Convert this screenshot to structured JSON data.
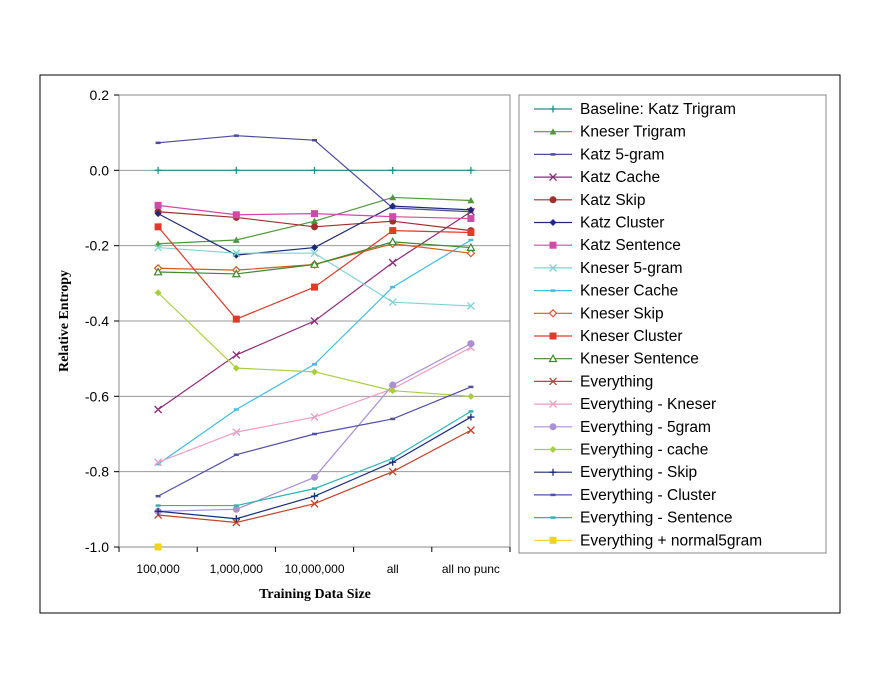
{
  "chart_data": {
    "type": "line",
    "title": "",
    "xlabel": "Training Data Size",
    "ylabel": "Relative Entropy",
    "categories": [
      "100,000",
      "1,000,000",
      "10,000,000",
      "all",
      "all no punc"
    ],
    "ylim": [
      -1.0,
      0.2
    ],
    "yticks": [
      -1.0,
      -0.8,
      -0.6,
      -0.4,
      -0.2,
      0.0,
      0.2
    ],
    "ytick_labels": [
      "-1.0",
      "-0.8",
      "-0.6",
      "-0.4",
      "-0.2",
      "0.0",
      "0.2"
    ],
    "grid": "horizontal",
    "legend_position": "right",
    "series": [
      {
        "name": "Baseline: Katz Trigram",
        "color": "#1f8f8f",
        "marker": "plus",
        "values": [
          0.0,
          0.0,
          0.0,
          0.0,
          0.0
        ]
      },
      {
        "name": "Kneser Trigram",
        "color": "#4e9a3a",
        "marker": "triangle",
        "values": [
          -0.195,
          -0.185,
          -0.135,
          -0.072,
          -0.08
        ]
      },
      {
        "name": "Katz 5-gram",
        "color": "#4b4ba0",
        "marker": "dash",
        "values": [
          0.073,
          0.092,
          0.08,
          -0.1,
          -0.11
        ]
      },
      {
        "name": "Katz Cache",
        "color": "#8e2a7a",
        "marker": "x",
        "values": [
          -0.635,
          -0.49,
          -0.4,
          -0.245,
          -0.11
        ]
      },
      {
        "name": "Katz Skip",
        "color": "#a02e2e",
        "marker": "circle",
        "values": [
          -0.11,
          -0.125,
          -0.15,
          -0.135,
          -0.16
        ]
      },
      {
        "name": "Katz Cluster",
        "color": "#1e2a78",
        "marker": "diamond",
        "values": [
          -0.115,
          -0.225,
          -0.205,
          -0.095,
          -0.105
        ]
      },
      {
        "name": "Katz Sentence",
        "color": "#d04aa6",
        "marker": "square",
        "values": [
          -0.093,
          -0.118,
          -0.115,
          -0.123,
          -0.128
        ]
      },
      {
        "name": "Kneser 5-gram",
        "color": "#7fd4d4",
        "marker": "x",
        "values": [
          -0.205,
          -0.22,
          -0.22,
          -0.35,
          -0.36
        ]
      },
      {
        "name": "Kneser Cache",
        "color": "#3fbde8",
        "marker": "dash",
        "values": [
          -0.78,
          -0.635,
          -0.515,
          -0.31,
          -0.185
        ]
      },
      {
        "name": "Kneser Skip",
        "color": "#d45a1e",
        "marker": "diamond-open",
        "values": [
          -0.26,
          -0.265,
          -0.25,
          -0.195,
          -0.22
        ]
      },
      {
        "name": "Kneser Cluster",
        "color": "#e03a2a",
        "marker": "square",
        "values": [
          -0.15,
          -0.395,
          -0.31,
          -0.16,
          -0.165
        ]
      },
      {
        "name": "Kneser Sentence",
        "color": "#3e8a2e",
        "marker": "triangle-open",
        "values": [
          -0.27,
          -0.275,
          -0.25,
          -0.19,
          -0.205
        ]
      },
      {
        "name": "Everything",
        "color": "#c0442a",
        "marker": "x",
        "values": [
          -0.915,
          -0.935,
          -0.885,
          -0.8,
          -0.69
        ]
      },
      {
        "name": "Everything - Kneser",
        "color": "#f29ac2",
        "marker": "x",
        "values": [
          -0.775,
          -0.695,
          -0.655,
          -0.58,
          -0.47
        ]
      },
      {
        "name": "Everything - 5gram",
        "color": "#a98fd6",
        "marker": "circle",
        "values": [
          -0.905,
          -0.9,
          -0.815,
          -0.57,
          -0.46
        ]
      },
      {
        "name": "Everything - cache",
        "color": "#a8cf3c",
        "marker": "diamond",
        "values": [
          -0.325,
          -0.525,
          -0.535,
          -0.585,
          -0.6
        ]
      },
      {
        "name": "Everything - Skip",
        "color": "#1a2a7a",
        "marker": "plus",
        "values": [
          -0.905,
          -0.925,
          -0.865,
          -0.775,
          -0.655
        ]
      },
      {
        "name": "Everything - Cluster",
        "color": "#5050a8",
        "marker": "dash",
        "values": [
          -0.865,
          -0.755,
          -0.7,
          -0.66,
          -0.575
        ]
      },
      {
        "name": "Everything - Sentence",
        "color": "#2bb5b5",
        "marker": "dash",
        "values": [
          -0.89,
          -0.89,
          -0.845,
          -0.765,
          -0.64
        ]
      },
      {
        "name": "Everything + normal5gram",
        "color": "#f2d21e",
        "marker": "square",
        "values": [
          -1.0,
          null,
          null,
          null,
          null
        ]
      }
    ]
  }
}
